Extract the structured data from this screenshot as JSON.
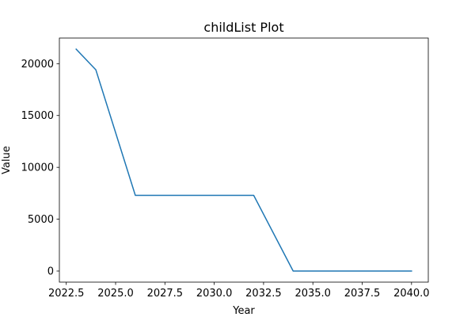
{
  "chart_data": {
    "type": "line",
    "title": "childList Plot",
    "xlabel": "Year",
    "ylabel": "Value",
    "x": [
      2023,
      2024,
      2026,
      2032,
      2034,
      2040
    ],
    "series": [
      {
        "values": [
          21400,
          19400,
          7300,
          7300,
          0,
          0
        ],
        "color": "#1f77b4"
      }
    ],
    "xlim": [
      2022.15,
      2040.85
    ],
    "ylim": [
      -1070,
      22470
    ],
    "xticks": [
      2022.5,
      2025.0,
      2027.5,
      2030.0,
      2032.5,
      2035.0,
      2037.5,
      2040.0
    ],
    "xtick_labels": [
      "2022.5",
      "2025.0",
      "2027.5",
      "2030.0",
      "2032.5",
      "2035.0",
      "2037.5",
      "2040.0"
    ],
    "yticks": [
      0,
      5000,
      10000,
      15000,
      20000
    ],
    "ytick_labels": [
      "0",
      "5000",
      "10000",
      "15000",
      "20000"
    ],
    "grid": false,
    "legend": false
  }
}
